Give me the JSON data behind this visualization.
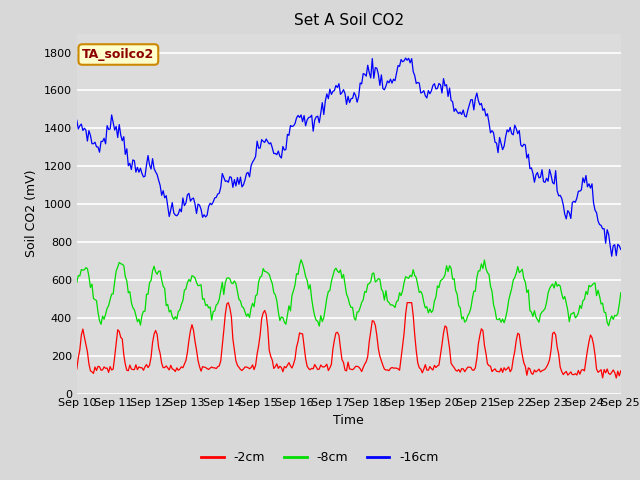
{
  "title": "Set A Soil CO2",
  "xlabel": "Time",
  "ylabel": "Soil CO2 (mV)",
  "legend_label": "TA_soilco2",
  "series_labels": [
    "-2cm",
    "-8cm",
    "-16cm"
  ],
  "series_colors": [
    "#ff0000",
    "#00dd00",
    "#0000ff"
  ],
  "ylim": [
    0,
    1900
  ],
  "yticks": [
    0,
    200,
    400,
    600,
    800,
    1000,
    1200,
    1400,
    1600,
    1800
  ],
  "xtick_labels": [
    "Sep 10",
    "Sep 11",
    "Sep 12",
    "Sep 13",
    "Sep 14",
    "Sep 15",
    "Sep 16",
    "Sep 17",
    "Sep 18",
    "Sep 19",
    "Sep 20",
    "Sep 21",
    "Sep 22",
    "Sep 23",
    "Sep 24",
    "Sep 25"
  ],
  "fig_bg": "#d8d8d8",
  "plot_bg": "#dcdcdc",
  "grid_color": "#ffffff",
  "legend_box_facecolor": "#ffffcc",
  "legend_box_edgecolor": "#cc8800",
  "legend_label_color": "#8b0000"
}
